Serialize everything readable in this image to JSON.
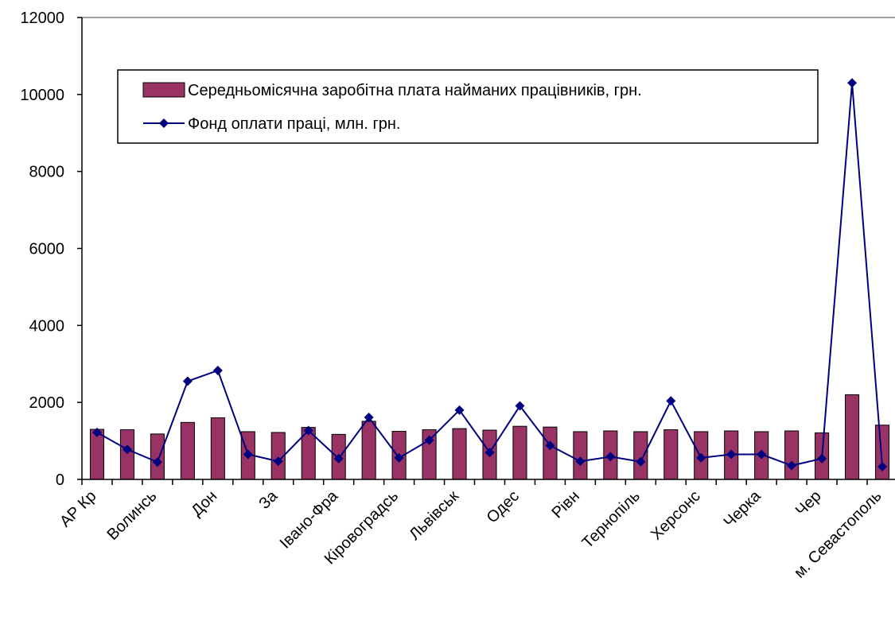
{
  "chart_data": {
    "type": "bar_line",
    "categories": [
      "АР Кр",
      null,
      "Волинсь",
      null,
      "Дон",
      null,
      "За",
      null,
      "Івано-Фра",
      null,
      "Кіровоградсь",
      null,
      "Львівськ",
      null,
      "Одес",
      null,
      "Рівн",
      null,
      "Тернопіль",
      null,
      "Херсонс",
      null,
      "Черка",
      null,
      "Чер",
      null,
      "м. Севастополь"
    ],
    "series": [
      {
        "name": "Середньомісячна заробітна плата найманих працівників, грн.",
        "type": "bar",
        "color": "#993366",
        "values": [
          1300,
          1290,
          1180,
          1480,
          1600,
          1240,
          1220,
          1350,
          1170,
          1510,
          1250,
          1290,
          1320,
          1280,
          1380,
          1360,
          1240,
          1260,
          1240,
          1290,
          1240,
          1260,
          1240,
          1260,
          1210,
          2200,
          1410
        ]
      },
      {
        "name": "Фонд оплати праці, млн. грн.",
        "type": "line",
        "color": "#000080",
        "values": [
          1220,
          780,
          450,
          2550,
          2830,
          650,
          470,
          1270,
          540,
          1610,
          560,
          1020,
          1800,
          700,
          1910,
          880,
          470,
          590,
          460,
          2040,
          560,
          650,
          650,
          360,
          540,
          10300,
          330
        ]
      }
    ],
    "ylim": [
      0,
      12000
    ],
    "yticks": [
      0,
      2000,
      4000,
      6000,
      8000,
      10000,
      12000
    ],
    "grid": false
  }
}
